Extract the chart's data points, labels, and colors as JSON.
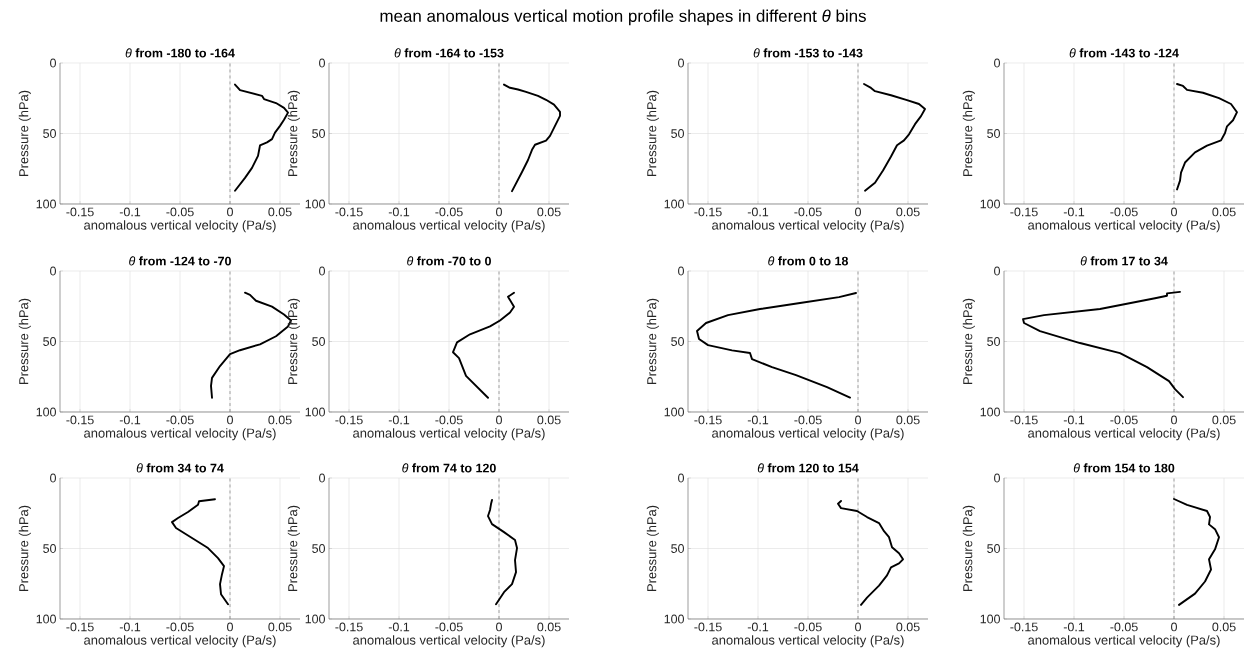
{
  "chart_data": [
    {
      "type": "line",
      "title": "*θ*  **from -180 to -164**",
      "annotations": [
        "mean anomalous vertical motion profile shapes in different  *θ* bins"
      ],
      "xlabel": "anomalous vertical velocity (Pa/s)",
      "ylabel": "Pressure (hPa)",
      "xlim": [
        -0.17,
        0.07
      ],
      "ylim": [
        100,
        0
      ],
      "xticks": [
        -0.15,
        -0.1,
        -0.05,
        0,
        0.05
      ],
      "yticks": [
        0,
        50,
        100
      ],
      "grid": true,
      "ref_lines": [
        {
          "axis": "x",
          "value": 0,
          "color": "#808080",
          "line_style": "dashed"
        }
      ],
      "series": [
        {
          "color": "#000000",
          "x": [
            0.005,
            0.008,
            0.01,
            0.032,
            0.034,
            0.046,
            0.054,
            0.058,
            0.054,
            0.05,
            0.045,
            0.042,
            0.037,
            0.03,
            0.028,
            0.022,
            0.015,
            0.005
          ],
          "values": [
            15.3,
            17.6,
            19.3,
            23.3,
            25.6,
            28.4,
            31.8,
            35.2,
            40.3,
            44.6,
            49.4,
            54.0,
            56.3,
            58.5,
            65.9,
            74.4,
            81.5,
            90.6
          ]
        }
      ]
    },
    {
      "type": "line",
      "title": "*θ*  **from -164 to -153**",
      "xlabel": "anomalous vertical velocity (Pa/s)",
      "ylabel": "Pressure (hPa)",
      "xlim": [
        -0.17,
        0.07
      ],
      "ylim": [
        100,
        0
      ],
      "xticks": [
        -0.15,
        -0.1,
        -0.05,
        0,
        0.05
      ],
      "yticks": [
        0,
        50,
        100
      ],
      "grid": true,
      "ref_lines": [
        {
          "axis": "x",
          "value": 0,
          "color": "#808080",
          "line_style": "dashed"
        }
      ],
      "series": [
        {
          "color": "#000000",
          "x": [
            0.005,
            0.011,
            0.019,
            0.027,
            0.039,
            0.047,
            0.055,
            0.061,
            0.061,
            0.059,
            0.055,
            0.051,
            0.047,
            0.036,
            0.033,
            0.029,
            0.023,
            0.013
          ],
          "values": [
            15.3,
            17.6,
            18.8,
            20.5,
            23.3,
            26.1,
            29.5,
            34.7,
            37.5,
            40.3,
            46.0,
            51.7,
            55.1,
            58.0,
            61.6,
            68.8,
            77.3,
            90.9
          ]
        }
      ]
    },
    {
      "type": "line",
      "title": "*θ*  **from -153 to -143**",
      "xlabel": "anomalous vertical velocity (Pa/s)",
      "ylabel": "Pressure (hPa)",
      "xlim": [
        -0.17,
        0.07
      ],
      "ylim": [
        100,
        0
      ],
      "xticks": [
        -0.15,
        -0.1,
        -0.05,
        0,
        0.05
      ],
      "yticks": [
        0,
        50,
        100
      ],
      "grid": true,
      "ref_lines": [
        {
          "axis": "x",
          "value": 0,
          "color": "#808080",
          "line_style": "dashed"
        }
      ],
      "series": [
        {
          "color": "#000000",
          "x": [
            0.006,
            0.013,
            0.017,
            0.033,
            0.049,
            0.061,
            0.067,
            0.063,
            0.057,
            0.051,
            0.046,
            0.039,
            0.033,
            0.025,
            0.017,
            0.007
          ],
          "values": [
            14.9,
            17.7,
            20.0,
            22.9,
            26.3,
            29.1,
            32.6,
            37.7,
            43.4,
            50.6,
            54.9,
            58.3,
            66.3,
            76.3,
            84.9,
            90.6
          ]
        }
      ]
    },
    {
      "type": "line",
      "title": "*θ*  **from -143 to -124**",
      "xlabel": "anomalous vertical velocity (Pa/s)",
      "ylabel": "Pressure (hPa)",
      "xlim": [
        -0.17,
        0.07
      ],
      "ylim": [
        100,
        0
      ],
      "xticks": [
        -0.15,
        -0.1,
        -0.05,
        0,
        0.05
      ],
      "yticks": [
        0,
        50,
        100
      ],
      "grid": true,
      "ref_lines": [
        {
          "axis": "x",
          "value": 0,
          "color": "#808080",
          "line_style": "dashed"
        }
      ],
      "series": [
        {
          "color": "#000000",
          "x": [
            0.003,
            0.009,
            0.013,
            0.029,
            0.045,
            0.057,
            0.063,
            0.059,
            0.053,
            0.051,
            0.047,
            0.033,
            0.021,
            0.011,
            0.007,
            0.006,
            0.003
          ],
          "values": [
            14.9,
            16.3,
            19.1,
            21.1,
            24.9,
            29.1,
            34.9,
            40.6,
            44.9,
            49.7,
            54.9,
            58.6,
            63.4,
            70.6,
            77.7,
            83.4,
            89.7
          ]
        }
      ]
    },
    {
      "type": "line",
      "title": "*θ*  **from -124 to -70**",
      "xlabel": "anomalous vertical velocity (Pa/s)",
      "ylabel": "Pressure (hPa)",
      "xlim": [
        -0.17,
        0.07
      ],
      "ylim": [
        100,
        0
      ],
      "xticks": [
        -0.15,
        -0.1,
        -0.05,
        0,
        0.05
      ],
      "yticks": [
        0,
        50,
        100
      ],
      "grid": true,
      "ref_lines": [
        {
          "axis": "x",
          "value": 0,
          "color": "#808080",
          "line_style": "dashed"
        }
      ],
      "series": [
        {
          "color": "#000000",
          "x": [
            0.015,
            0.02,
            0.026,
            0.042,
            0.054,
            0.061,
            0.058,
            0.046,
            0.03,
            0.01,
            0,
            -0.01,
            -0.018,
            -0.019,
            -0.018
          ],
          "values": [
            15.4,
            16.9,
            21.1,
            25.3,
            30.9,
            35.1,
            39.3,
            46.3,
            52.0,
            56.2,
            59.0,
            67.4,
            75.8,
            81.5,
            89.9
          ]
        }
      ]
    },
    {
      "type": "line",
      "title": "*θ*  **from -70 to 0**",
      "xlabel": "anomalous vertical velocity (Pa/s)",
      "ylabel": "Pressure (hPa)",
      "xlim": [
        -0.17,
        0.07
      ],
      "ylim": [
        100,
        0
      ],
      "xticks": [
        -0.15,
        -0.1,
        -0.05,
        0,
        0.05
      ],
      "yticks": [
        0,
        50,
        100
      ],
      "grid": true,
      "ref_lines": [
        {
          "axis": "x",
          "value": 0,
          "color": "#808080",
          "line_style": "dashed"
        }
      ],
      "series": [
        {
          "color": "#000000",
          "x": [
            0.015,
            0.009,
            0.015,
            0.011,
            0.001,
            -0.009,
            -0.029,
            -0.042,
            -0.046,
            -0.04,
            -0.033,
            -0.011
          ],
          "values": [
            15.4,
            18.3,
            25.3,
            29.5,
            35.1,
            39.3,
            44.9,
            50.6,
            57.6,
            61.8,
            74.4,
            89.9
          ]
        }
      ]
    },
    {
      "type": "line",
      "title": "*θ*  **from 0 to 18**",
      "xlabel": "anomalous vertical velocity (Pa/s)",
      "ylabel": "Pressure (hPa)",
      "xlim": [
        -0.17,
        0.07
      ],
      "ylim": [
        100,
        0
      ],
      "xticks": [
        -0.15,
        -0.1,
        -0.05,
        0,
        0.05
      ],
      "yticks": [
        0,
        50,
        100
      ],
      "grid": true,
      "ref_lines": [
        {
          "axis": "x",
          "value": 0,
          "color": "#808080",
          "line_style": "dashed"
        }
      ],
      "series": [
        {
          "color": "#000000",
          "x": [
            -0.002,
            -0.019,
            -0.058,
            -0.098,
            -0.13,
            -0.152,
            -0.161,
            -0.159,
            -0.15,
            -0.126,
            -0.108,
            -0.106,
            -0.086,
            -0.062,
            -0.031,
            -0.008
          ],
          "values": [
            15.6,
            18.5,
            22.7,
            27.0,
            31.3,
            36.9,
            42.6,
            48.3,
            52.6,
            56.3,
            58.2,
            62.5,
            68.2,
            73.9,
            82.4,
            89.8
          ]
        }
      ]
    },
    {
      "type": "line",
      "title": "*θ*  **from 17 to 34**",
      "xlabel": "anomalous vertical velocity (Pa/s)",
      "ylabel": "Pressure (hPa)",
      "xlim": [
        -0.17,
        0.07
      ],
      "ylim": [
        100,
        0
      ],
      "xticks": [
        -0.15,
        -0.1,
        -0.05,
        0,
        0.05
      ],
      "yticks": [
        0,
        50,
        100
      ],
      "grid": true,
      "ref_lines": [
        {
          "axis": "x",
          "value": 0,
          "color": "#808080",
          "line_style": "dashed"
        }
      ],
      "series": [
        {
          "color": "#000000",
          "x": [
            0.006,
            -0.007,
            -0.007,
            -0.019,
            -0.074,
            -0.13,
            -0.151,
            -0.15,
            -0.134,
            -0.094,
            -0.054,
            -0.027,
            -0.005,
            0.001,
            0.009
          ],
          "values": [
            14.8,
            15.9,
            17.6,
            19.3,
            27.0,
            31.3,
            34.1,
            36.9,
            42.6,
            51.1,
            58.2,
            68.2,
            78.1,
            83.8,
            89.5
          ]
        }
      ]
    },
    {
      "type": "line",
      "title": "*θ*  **from 34 to 74**",
      "xlabel": "anomalous vertical velocity (Pa/s)",
      "ylabel": "Pressure (hPa)",
      "xlim": [
        -0.17,
        0.07
      ],
      "ylim": [
        100,
        0
      ],
      "xticks": [
        -0.15,
        -0.1,
        -0.05,
        0,
        0.05
      ],
      "yticks": [
        0,
        50,
        100
      ],
      "grid": true,
      "ref_lines": [
        {
          "axis": "x",
          "value": 0,
          "color": "#808080",
          "line_style": "dashed"
        }
      ],
      "series": [
        {
          "color": "#000000",
          "x": [
            -0.015,
            -0.031,
            -0.032,
            -0.042,
            -0.052,
            -0.058,
            -0.054,
            -0.038,
            -0.022,
            -0.012,
            -0.006,
            -0.008,
            -0.01,
            -0.009,
            -0.002
          ],
          "values": [
            15.1,
            16.5,
            19.0,
            24.1,
            28.4,
            31.3,
            35.5,
            42.6,
            49.7,
            56.8,
            62.5,
            68.2,
            75.3,
            82.4,
            89.5
          ]
        }
      ]
    },
    {
      "type": "line",
      "title": "*θ*  **from 74 to 120**",
      "xlabel": "anomalous vertical velocity (Pa/s)",
      "ylabel": "Pressure (hPa)",
      "xlim": [
        -0.17,
        0.07
      ],
      "ylim": [
        100,
        0
      ],
      "xticks": [
        -0.15,
        -0.1,
        -0.05,
        0,
        0.05
      ],
      "yticks": [
        0,
        50,
        100
      ],
      "grid": true,
      "ref_lines": [
        {
          "axis": "x",
          "value": 0,
          "color": "#808080",
          "line_style": "dashed"
        }
      ],
      "series": [
        {
          "color": "#000000",
          "x": [
            -0.007,
            -0.008,
            -0.009,
            -0.011,
            -0.007,
            0.005,
            0.016,
            0.018,
            0.016,
            0.017,
            0.013,
            0.005,
            -0.003
          ],
          "values": [
            15.6,
            18.5,
            22.7,
            27.0,
            32.7,
            38.4,
            44.0,
            49.7,
            58.2,
            66.8,
            75.3,
            81.0,
            89.5
          ]
        }
      ]
    },
    {
      "type": "line",
      "title": "*θ*  **from 120 to 154**",
      "xlabel": "anomalous vertical velocity (Pa/s)",
      "ylabel": "Pressure (hPa)",
      "xlim": [
        -0.17,
        0.07
      ],
      "ylim": [
        100,
        0
      ],
      "xticks": [
        -0.15,
        -0.1,
        -0.05,
        0,
        0.05
      ],
      "yticks": [
        0,
        50,
        100
      ],
      "grid": true,
      "ref_lines": [
        {
          "axis": "x",
          "value": 0,
          "color": "#808080",
          "line_style": "dashed"
        }
      ],
      "series": [
        {
          "color": "#000000",
          "x": [
            -0.017,
            -0.02,
            -0.017,
            -0.001,
            0.009,
            0.021,
            0.026,
            0.031,
            0.034,
            0.041,
            0.045,
            0.041,
            0.033,
            0.029,
            0.021,
            0.009,
            0.003
          ],
          "values": [
            16.3,
            18.3,
            21.4,
            23.4,
            27.7,
            32.0,
            37.7,
            42.0,
            49.1,
            53.4,
            57.7,
            60.6,
            63.4,
            69.1,
            76.3,
            84.9,
            90.0
          ]
        }
      ]
    },
    {
      "type": "line",
      "title": "*θ*  **from 154 to 180**",
      "xlabel": "anomalous vertical velocity (Pa/s)",
      "ylabel": "Pressure (hPa)",
      "xlim": [
        -0.17,
        0.07
      ],
      "ylim": [
        100,
        0
      ],
      "xticks": [
        -0.15,
        -0.1,
        -0.05,
        0,
        0.05
      ],
      "yticks": [
        0,
        50,
        100
      ],
      "grid": true,
      "ref_lines": [
        {
          "axis": "x",
          "value": 0,
          "color": "#808080",
          "line_style": "dashed"
        }
      ],
      "series": [
        {
          "color": "#000000",
          "x": [
            0.0,
            0.013,
            0.033,
            0.036,
            0.035,
            0.041,
            0.045,
            0.041,
            0.035,
            0.037,
            0.031,
            0.021,
            0.005
          ],
          "values": [
            14.9,
            19.1,
            23.4,
            27.7,
            32.9,
            36.3,
            42.0,
            50.6,
            57.7,
            64.9,
            73.4,
            82.0,
            90.0
          ]
        }
      ]
    }
  ]
}
